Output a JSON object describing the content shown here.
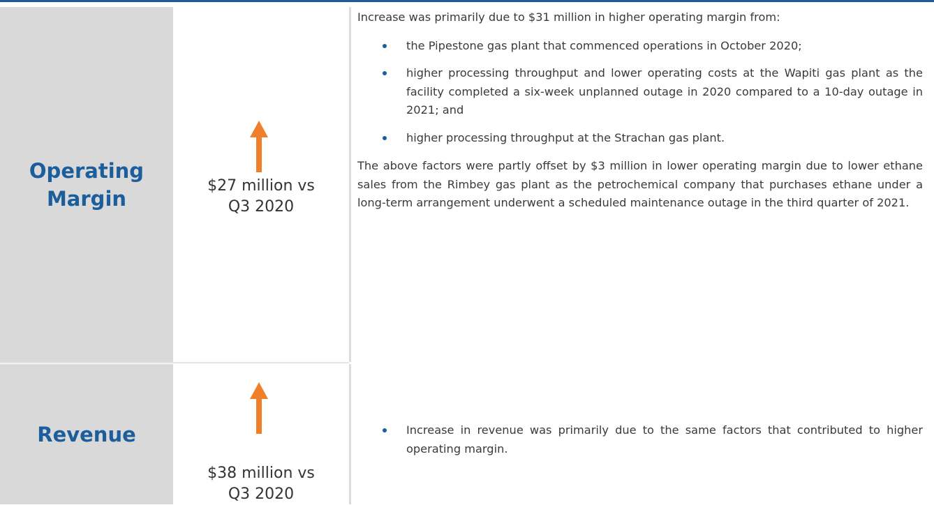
{
  "rows": [
    {
      "label": "Operating Margin",
      "change": "$27 million vs Q3 2020",
      "intro": "Increase was primarily due to $31 million in higher operating margin from:",
      "bullets": [
        "the Pipestone gas plant that commenced operations in October 2020;",
        "higher processing throughput and lower operating costs at the Wapiti gas plant as the facility completed a six-week unplanned outage in 2020 compared to a 10-day outage in 2021; and",
        "higher processing throughput at the Strachan gas plant."
      ],
      "closing": "The above factors were partly offset by $3 million in lower operating margin due to lower ethane sales from the Rimbey gas plant as the petrochemical company that purchases ethane under a long-term arrangement underwent a scheduled maintenance outage in the third quarter of 2021."
    },
    {
      "label": "Revenue",
      "change": "$38 million vs Q3 2020",
      "bullets": [
        "Increase in revenue was primarily due to the same factors that contributed to higher operating margin."
      ]
    }
  ]
}
